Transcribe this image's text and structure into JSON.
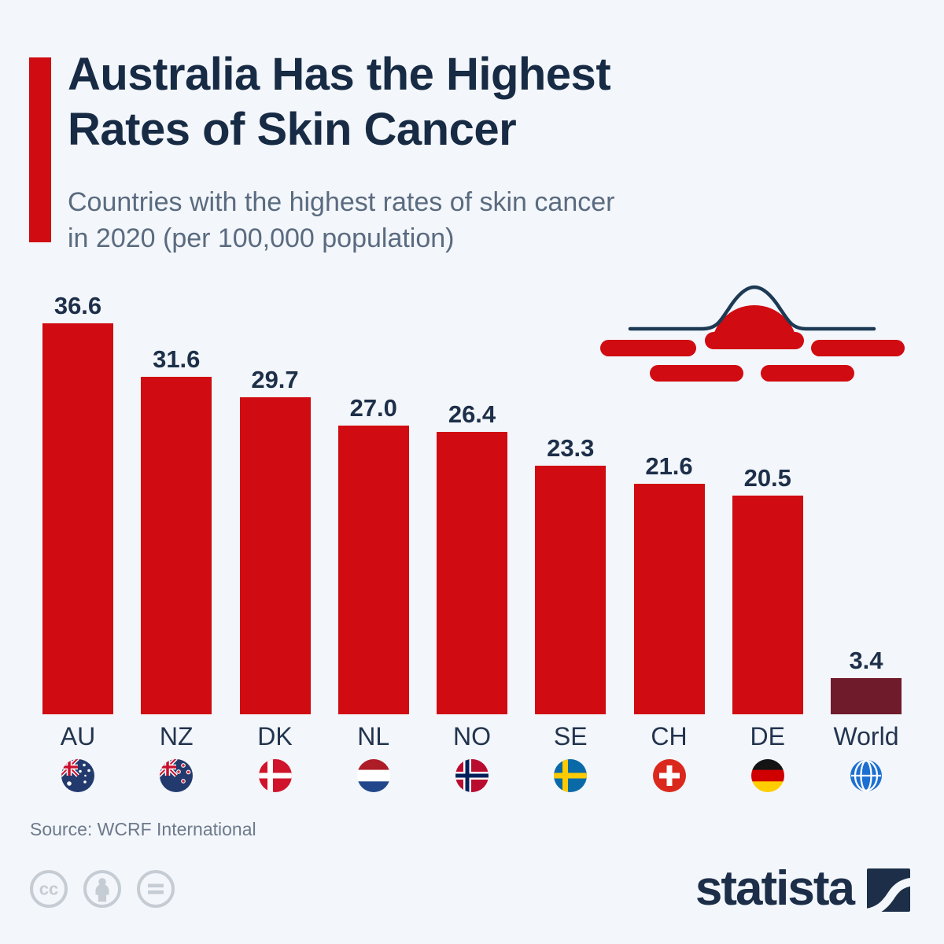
{
  "header": {
    "title_line1": "Australia Has the Highest",
    "title_line2": "Rates of Skin Cancer",
    "subtitle_line1": "Countries with the highest rates of skin cancer",
    "subtitle_line2": "in 2020 (per 100,000 population)"
  },
  "chart_data": {
    "type": "bar",
    "title": "Australia Has the Highest Rates of Skin Cancer",
    "subtitle": "Countries with the highest rates of skin cancer in 2020 (per 100,000 population)",
    "categories": [
      "AU",
      "NZ",
      "DK",
      "NL",
      "NO",
      "SE",
      "CH",
      "DE",
      "World"
    ],
    "values": [
      36.6,
      31.6,
      29.7,
      27.0,
      26.4,
      23.3,
      21.6,
      20.5,
      3.4
    ],
    "value_labels": [
      "36.6",
      "31.6",
      "29.7",
      "27.0",
      "26.4",
      "23.3",
      "21.6",
      "20.5",
      "3.4"
    ],
    "flags": [
      "flag-australia",
      "flag-new-zealand",
      "flag-denmark",
      "flag-netherlands",
      "flag-norway",
      "flag-sweden",
      "flag-switzerland",
      "flag-germany",
      "globe-world-icon"
    ],
    "bar_color": "#d00b11",
    "world_bar_color": "#6f1b2c",
    "orientation": "vertical",
    "ylim": [
      0,
      38
    ],
    "grid": false,
    "legend": null
  },
  "decor": {
    "sun_icon": "sunset-over-water-icon"
  },
  "footer": {
    "source": "Source: WCRF International",
    "license_icons": [
      "cc-icon",
      "cc-by-person-icon",
      "cc-nd-equals-icon"
    ],
    "brand_wordmark": "statista"
  },
  "colors": {
    "accent_red": "#d00b11",
    "world_maroon": "#6f1b2c",
    "navy_text": "#182b45",
    "subtitle_gray": "#5a6b80",
    "source_gray": "#6d7a8c",
    "license_icon_gray": "#c6ccd4",
    "brand_navy": "#1c2e48",
    "globe_blue": "#1d6fd2",
    "background": "#f3f6fa"
  }
}
